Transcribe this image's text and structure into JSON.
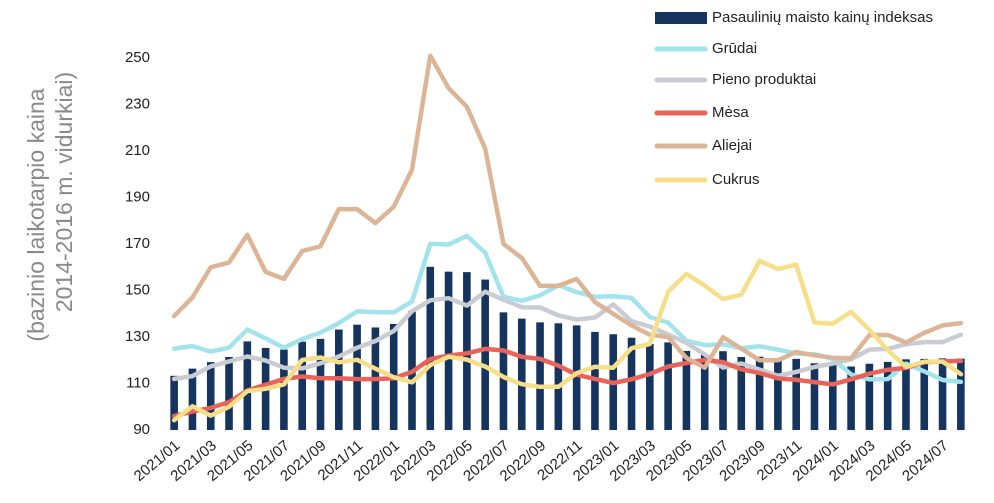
{
  "chart_data": {
    "type": "bar",
    "y_axis_label": [
      "(bazinio laikotarpio kaina",
      "2014-2016 m. vidurkiai)"
    ],
    "categories": [
      "2021/01",
      null,
      "2021/03",
      null,
      "2021/05",
      null,
      "2021/07",
      null,
      "2021/09",
      null,
      "2021/11",
      null,
      "2022/01",
      null,
      "2022/03",
      null,
      "2022/05",
      null,
      "2022/07",
      null,
      "2022/09",
      null,
      "2022/11",
      null,
      "2023/01",
      null,
      "2023/03",
      null,
      "2023/05",
      null,
      "2023/07",
      null,
      "2023/09",
      null,
      "2023/11",
      null,
      "2024/01",
      null,
      "2024/03",
      null,
      "2024/05",
      null,
      "2024/07",
      null
    ],
    "ylim": [
      90,
      260
    ],
    "yticks": [
      90,
      110,
      130,
      150,
      170,
      190,
      210,
      230,
      250
    ],
    "series": [
      {
        "name": "Pasaulinių maisto kainų indeksas",
        "type": "bar",
        "color": "#15355f",
        "values": [
          113.3,
          116.4,
          119.2,
          121.4,
          128.1,
          125.3,
          124.6,
          128.0,
          129.2,
          133.2,
          135.3,
          134.1,
          135.6,
          141.1,
          160.2,
          158.1,
          157.9,
          154.7,
          140.6,
          137.9,
          136.3,
          135.9,
          135.0,
          132.2,
          131.2,
          129.7,
          127.0,
          127.7,
          124.0,
          122.4,
          123.9,
          121.4,
          121.5,
          120.7,
          120.6,
          118.7,
          118.0,
          117.3,
          118.5,
          119.3,
          120.4,
          120.6,
          120.8,
          120.7
        ]
      },
      {
        "name": "Grūdai",
        "type": "line",
        "color": "#a2e3ec",
        "values": [
          125.0,
          126.1,
          123.7,
          125.4,
          133.2,
          129.4,
          125.4,
          129.1,
          131.9,
          136.0,
          141.0,
          140.7,
          140.6,
          145.3,
          170.1,
          169.8,
          173.5,
          166.3,
          147.3,
          145.6,
          147.9,
          152.3,
          149.3,
          147.3,
          147.5,
          146.8,
          138.6,
          136.2,
          128.4,
          126.5,
          126.8,
          125.2,
          126.0,
          124.6,
          122.9,
          122.6,
          120.6,
          113.9,
          111.8,
          111.9,
          118.5,
          115.2,
          111.5,
          110.7
        ]
      },
      {
        "name": "Pieno produktai",
        "type": "line",
        "color": "#c9ccd2",
        "values": [
          112.0,
          113.2,
          117.4,
          119.5,
          121.6,
          119.9,
          116.8,
          116.5,
          118.7,
          121.6,
          125.4,
          128.3,
          132.6,
          141.1,
          145.8,
          146.7,
          143.5,
          149.5,
          146.0,
          142.8,
          142.7,
          139.3,
          137.5,
          138.4,
          144.0,
          136.8,
          134.5,
          131.1,
          127.4,
          122.5,
          116.9,
          118.6,
          116.0,
          113.3,
          115.0,
          117.1,
          118.6,
          120.4,
          124.6,
          124.9,
          126.9,
          127.8,
          127.8,
          131.0
        ]
      },
      {
        "name": "Mėsa",
        "type": "line",
        "color": "#e8645a",
        "values": [
          96.0,
          97.9,
          99.5,
          102.0,
          107.0,
          109.5,
          112.0,
          113.0,
          112.3,
          112.3,
          111.9,
          111.9,
          112.3,
          115.0,
          120.5,
          122.0,
          123.0,
          124.9,
          124.2,
          121.5,
          120.6,
          117.7,
          113.8,
          112.0,
          110.2,
          111.8,
          114.1,
          117.3,
          118.8,
          120.1,
          119.2,
          116.1,
          114.5,
          112.2,
          111.6,
          110.6,
          109.6,
          111.8,
          114.2,
          115.9,
          116.7,
          119.1,
          119.5,
          119.7
        ]
      },
      {
        "name": "Aliejai",
        "type": "line",
        "color": "#dcb596",
        "values": [
          139.0,
          147.0,
          160.0,
          162.0,
          174.0,
          158.0,
          155.0,
          167.0,
          169.0,
          185.0,
          185.0,
          179.0,
          186.0,
          202.0,
          251.0,
          237.0,
          229.0,
          211.0,
          170.0,
          164.0,
          152.0,
          152.0,
          155.0,
          145.0,
          140.0,
          135.0,
          131.0,
          130.0,
          121.0,
          116.8,
          129.9,
          125.0,
          120.0,
          120.0,
          123.6,
          122.1,
          121.1,
          120.9,
          130.8,
          130.9,
          127.6,
          131.8,
          135.0,
          136.0
        ]
      },
      {
        "name": "Cukrus",
        "type": "line",
        "color": "#f6df88",
        "values": [
          94.2,
          100.2,
          96.2,
          100.0,
          106.7,
          107.7,
          109.6,
          120.1,
          121.2,
          119.1,
          120.2,
          116.4,
          112.7,
          110.5,
          117.9,
          121.5,
          120.3,
          117.3,
          112.8,
          109.7,
          108.6,
          108.6,
          114.4,
          117.2,
          116.8,
          125.2,
          127.0,
          149.4,
          157.2,
          152.1,
          146.3,
          148.2,
          162.7,
          159.2,
          161.1,
          136.2,
          135.7,
          140.8,
          133.1,
          124.4,
          117.1,
          119.4,
          119.4,
          114.0
        ]
      }
    ]
  }
}
